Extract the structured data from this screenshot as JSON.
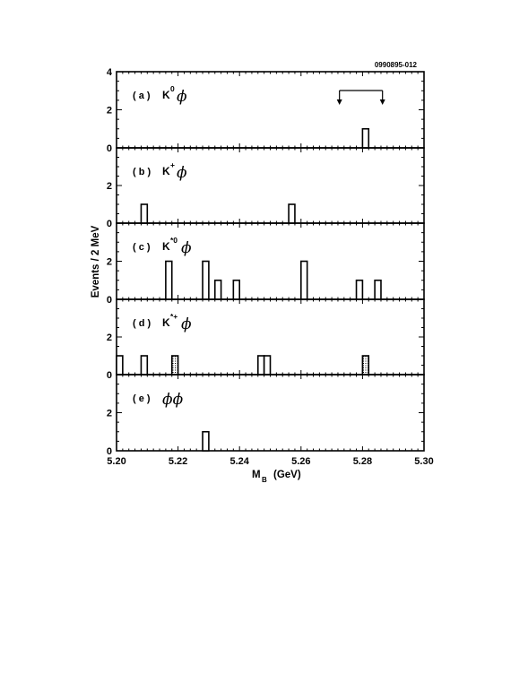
{
  "figure_id": "0990895-012",
  "chart_data": {
    "type": "bar",
    "xlabel": "M",
    "xlabel_sub": "B",
    "xlabel_unit": "(GeV)",
    "ylabel": "Events / 2 MeV",
    "xlim": [
      5.2,
      5.3
    ],
    "xticks": [
      "5.20",
      "5.22",
      "5.24",
      "5.26",
      "5.28",
      "5.30"
    ],
    "bin_width": 0.002,
    "grid": false,
    "panels": [
      {
        "label": "(a)",
        "particle": "K",
        "superscript": "0",
        "symbol": "ϕ",
        "ylim": [
          0,
          4
        ],
        "yticks": [
          "0",
          "2",
          "4"
        ],
        "signal_arrow": [
          5.2725,
          5.2865
        ],
        "bars": [
          {
            "x": 5.28,
            "value": 1,
            "fill": "open"
          }
        ]
      },
      {
        "label": "(b)",
        "particle": "K",
        "superscript": "+",
        "symbol": "ϕ",
        "ylim": [
          0,
          4
        ],
        "yticks": [
          "0",
          "2"
        ],
        "bars": [
          {
            "x": 5.208,
            "value": 1,
            "fill": "open"
          },
          {
            "x": 5.256,
            "value": 1,
            "fill": "open"
          }
        ]
      },
      {
        "label": "(c)",
        "particle": "K",
        "superscript": "*0",
        "symbol": "ϕ",
        "ylim": [
          0,
          4
        ],
        "yticks": [
          "0",
          "2"
        ],
        "bars": [
          {
            "x": 5.216,
            "value": 2,
            "fill": "open"
          },
          {
            "x": 5.228,
            "value": 2,
            "fill": "open"
          },
          {
            "x": 5.232,
            "value": 1,
            "fill": "open"
          },
          {
            "x": 5.238,
            "value": 1,
            "fill": "open"
          },
          {
            "x": 5.26,
            "value": 2,
            "fill": "open"
          },
          {
            "x": 5.278,
            "value": 1,
            "fill": "open"
          },
          {
            "x": 5.284,
            "value": 1,
            "fill": "open"
          }
        ]
      },
      {
        "label": "(d)",
        "particle": "K",
        "superscript": "*+",
        "symbol": "ϕ",
        "ylim": [
          0,
          4
        ],
        "yticks": [
          "0",
          "2"
        ],
        "bars": [
          {
            "x": 5.2,
            "value": 1,
            "fill": "open"
          },
          {
            "x": 5.208,
            "value": 1,
            "fill": "open"
          },
          {
            "x": 5.218,
            "value": 1,
            "fill": "hatched"
          },
          {
            "x": 5.246,
            "value": 1,
            "fill": "open"
          },
          {
            "x": 5.248,
            "value": 1,
            "fill": "open"
          },
          {
            "x": 5.28,
            "value": 1,
            "fill": "hatched"
          }
        ]
      },
      {
        "label": "(e)",
        "particle": "",
        "superscript": "",
        "symbol": "ϕϕ",
        "ylim": [
          0,
          4
        ],
        "yticks": [
          "0",
          "2"
        ],
        "bars": [
          {
            "x": 5.228,
            "value": 1,
            "fill": "open"
          }
        ]
      }
    ]
  }
}
